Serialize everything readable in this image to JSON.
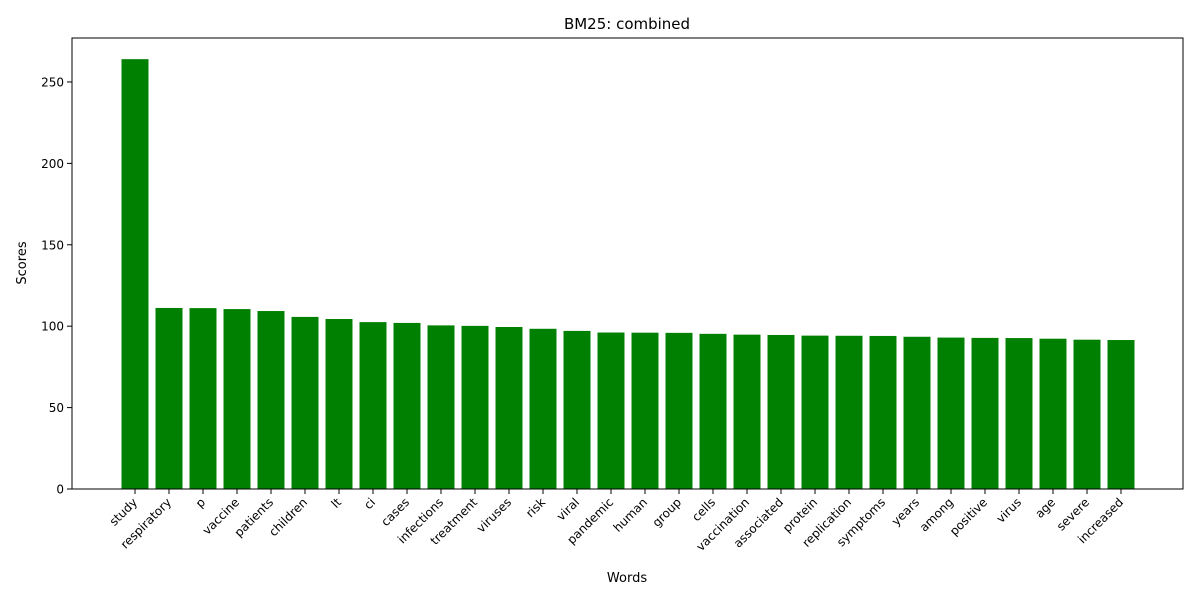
{
  "chart_data": {
    "type": "bar",
    "title": "BM25: combined",
    "xlabel": "Words",
    "ylabel": "Scores",
    "categories": [
      "study",
      "respiratory",
      "p",
      "vaccine",
      "patients",
      "children",
      "lt",
      "ci",
      "cases",
      "infections",
      "treatment",
      "viruses",
      "risk",
      "viral",
      "pandemic",
      "human",
      "group",
      "cells",
      "vaccination",
      "associated",
      "protein",
      "replication",
      "symptoms",
      "years",
      "among",
      "positive",
      "virus",
      "age",
      "severe",
      "increased"
    ],
    "values": [
      264,
      111.2,
      111.1,
      110.5,
      109.3,
      105.7,
      104.4,
      102.5,
      102.0,
      100.5,
      100.2,
      99.5,
      98.4,
      97.1,
      96.1,
      96.0,
      95.9,
      95.3,
      94.8,
      94.6,
      94.2,
      94.1,
      94.0,
      93.5,
      93.0,
      92.8,
      92.7,
      92.3,
      91.7,
      91.5
    ],
    "ylim": [
      0,
      277
    ],
    "yticks": [
      0,
      50,
      100,
      150,
      200,
      250
    ],
    "bar_color": "#008000",
    "grid": false,
    "legend": false
  }
}
